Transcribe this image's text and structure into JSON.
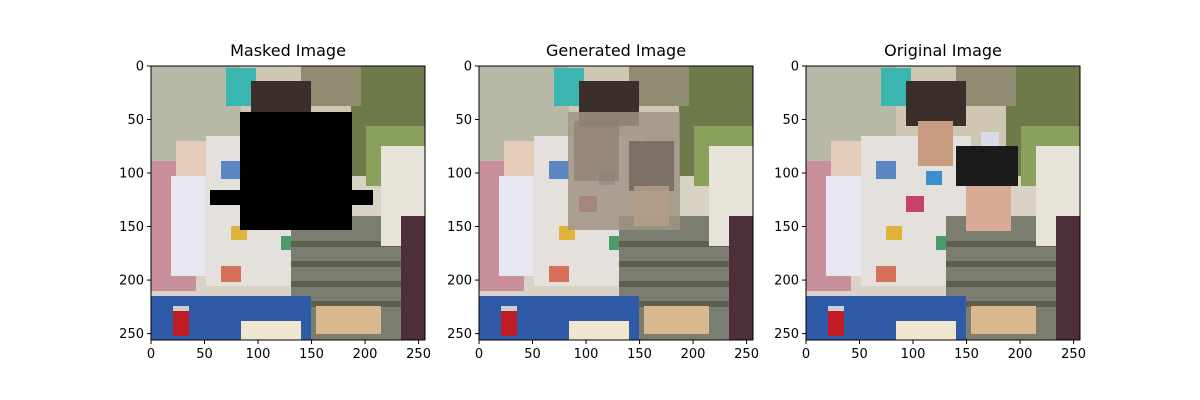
{
  "figure": {
    "panels": [
      {
        "title": "Masked Image",
        "kind": "masked"
      },
      {
        "title": "Generated Image",
        "kind": "generated"
      },
      {
        "title": "Original Image",
        "kind": "original"
      }
    ],
    "axis": {
      "x_ticks": [
        "0",
        "50",
        "100",
        "150",
        "200",
        "250"
      ],
      "y_ticks": [
        "0",
        "50",
        "100",
        "150",
        "200",
        "250"
      ],
      "range": [
        0,
        256
      ]
    }
  }
}
